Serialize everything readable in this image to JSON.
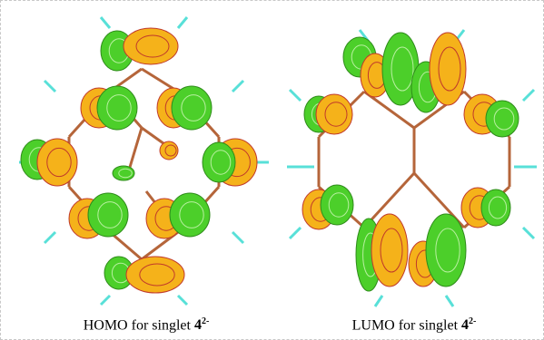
{
  "captions": [
    {
      "text": "HOMO for singlet",
      "number": "4",
      "charge": "2-"
    },
    {
      "text": "LUMO for singlet",
      "number": "4",
      "charge": "2-"
    }
  ]
}
